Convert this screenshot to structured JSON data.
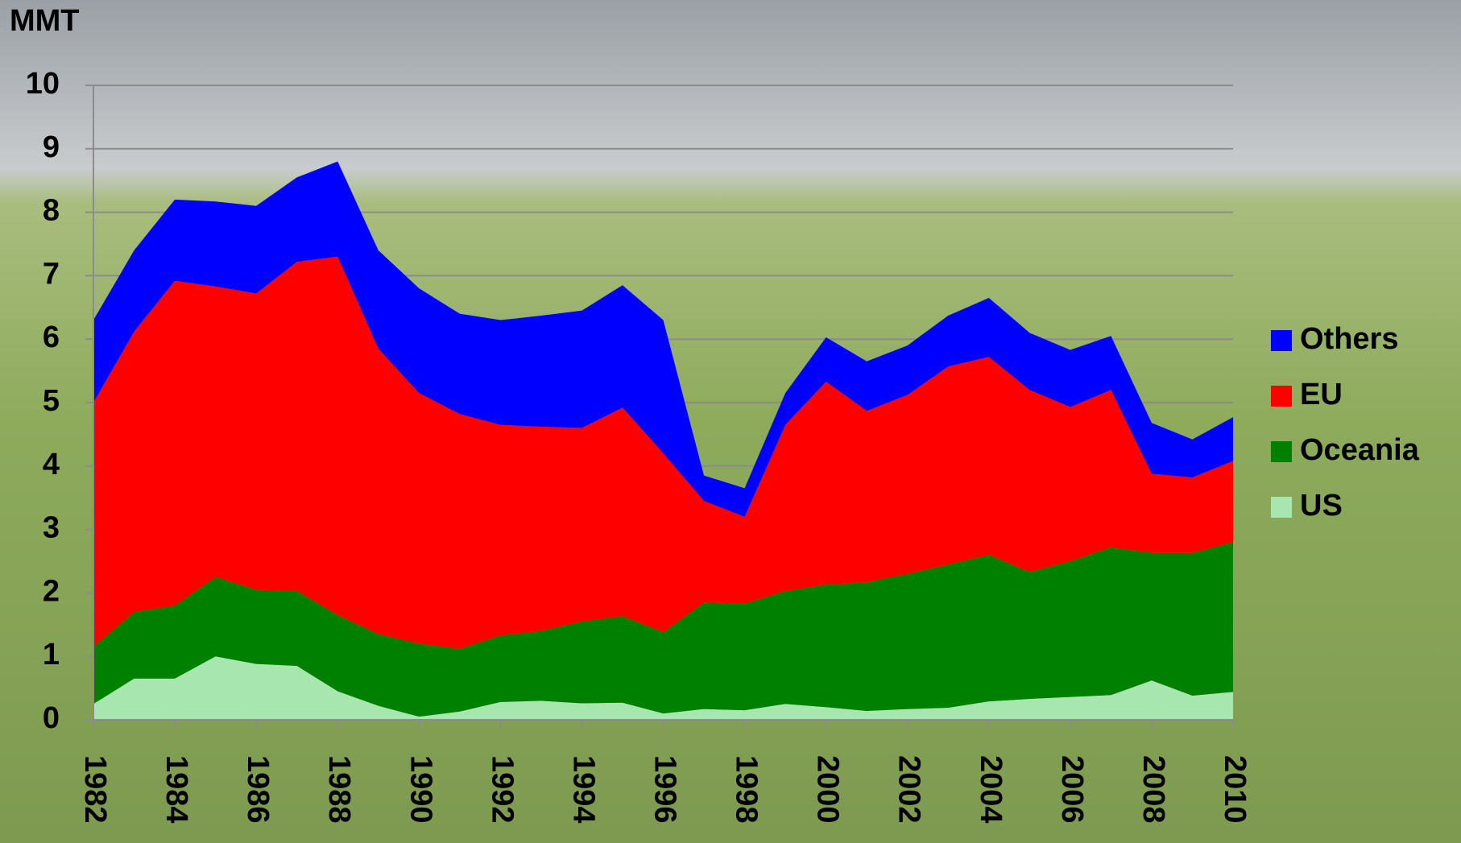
{
  "chart_data": {
    "type": "stacked_area",
    "y_label": "MMT",
    "x": [
      1982,
      1983,
      1984,
      1985,
      1986,
      1987,
      1988,
      1989,
      1990,
      1991,
      1992,
      1993,
      1994,
      1995,
      1996,
      1997,
      1998,
      1999,
      2000,
      2001,
      2002,
      2003,
      2004,
      2005,
      2006,
      2007,
      2008,
      2009,
      2010
    ],
    "xlim": [
      1982,
      2010
    ],
    "xticks": [
      1982,
      1984,
      1986,
      1988,
      1990,
      1992,
      1994,
      1996,
      1998,
      2000,
      2002,
      2004,
      2006,
      2008,
      2010
    ],
    "ylim": [
      0,
      10
    ],
    "yticks": [
      0,
      1,
      2,
      3,
      4,
      5,
      6,
      7,
      8,
      9,
      10
    ],
    "grid": true,
    "legend": "right",
    "series": [
      {
        "name": "US",
        "color": "#a8e6b0",
        "values": [
          0.25,
          0.65,
          0.65,
          1.0,
          0.88,
          0.85,
          0.45,
          0.22,
          0.05,
          0.13,
          0.28,
          0.3,
          0.26,
          0.27,
          0.1,
          0.17,
          0.15,
          0.25,
          0.2,
          0.14,
          0.17,
          0.19,
          0.29,
          0.33,
          0.36,
          0.39,
          0.62,
          0.38,
          0.44
        ]
      },
      {
        "name": "Oceania",
        "color": "#008000",
        "values": [
          0.9,
          1.05,
          1.15,
          1.25,
          1.17,
          1.18,
          1.2,
          1.13,
          1.15,
          0.99,
          1.05,
          1.1,
          1.29,
          1.36,
          1.28,
          1.68,
          1.68,
          1.78,
          1.93,
          2.03,
          2.13,
          2.26,
          2.31,
          2.0,
          2.14,
          2.33,
          2.01,
          2.25,
          2.36
        ]
      },
      {
        "name": "EU",
        "color": "#ff0000",
        "values": [
          3.85,
          4.42,
          5.12,
          4.58,
          4.67,
          5.19,
          5.65,
          4.5,
          3.95,
          3.7,
          3.32,
          3.22,
          3.05,
          3.29,
          2.82,
          1.6,
          1.37,
          2.62,
          3.2,
          2.7,
          2.82,
          3.12,
          3.12,
          2.87,
          2.43,
          2.48,
          1.25,
          1.19,
          1.28
        ]
      },
      {
        "name": "Others",
        "color": "#0000ff",
        "values": [
          1.3,
          1.28,
          1.28,
          1.34,
          1.38,
          1.33,
          1.5,
          1.55,
          1.65,
          1.58,
          1.65,
          1.75,
          1.85,
          1.93,
          2.1,
          0.4,
          0.45,
          0.5,
          0.7,
          0.78,
          0.78,
          0.8,
          0.93,
          0.9,
          0.9,
          0.85,
          0.8,
          0.6,
          0.69
        ]
      }
    ]
  }
}
